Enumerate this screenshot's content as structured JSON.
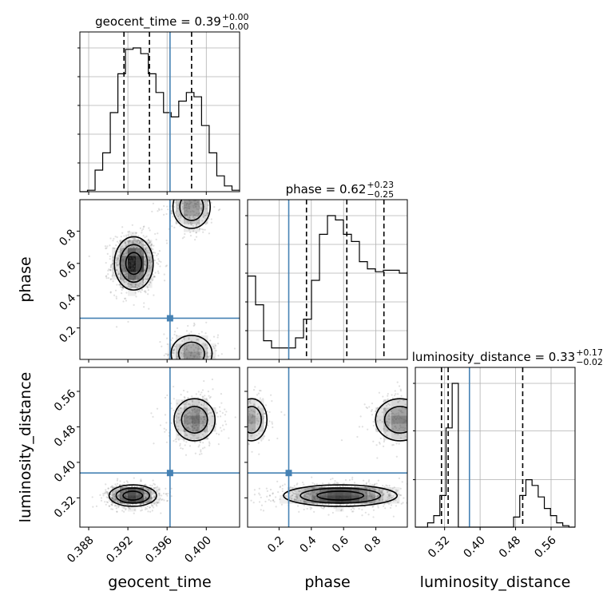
{
  "chart_data": {
    "type": "corner",
    "parameters": [
      "geocent_time",
      "phase",
      "luminosity_distance"
    ],
    "truths": {
      "geocent_time": 0.3963,
      "phase": 0.26,
      "luminosity_distance": 0.376
    },
    "titles": [
      {
        "param": "geocent_time",
        "text": "geocent_time = 0.39",
        "sup": "+0.00",
        "sub": "−0.00"
      },
      {
        "param": "phase",
        "text": "phase = 0.62",
        "sup": "+0.23",
        "sub": "−0.25"
      },
      {
        "param": "luminosity_distance",
        "text": "luminosity_distance = 0.33",
        "sup": "+0.17",
        "sub": "−0.02"
      }
    ],
    "ranges": {
      "geocent_time": [
        0.3871,
        0.4034
      ],
      "phase": [
        0.005,
        0.995
      ],
      "luminosity_distance": [
        0.254,
        0.614
      ]
    },
    "ticks": {
      "geocent_time": [
        "0.388",
        "0.392",
        "0.396",
        "0.400"
      ],
      "phase": [
        "0.2",
        "0.4",
        "0.6",
        "0.8"
      ],
      "luminosity_distance": [
        "0.32",
        "0.40",
        "0.48",
        "0.56"
      ]
    },
    "quantiles": {
      "geocent_time": [
        0.3916,
        0.3942,
        0.3985
      ],
      "phase": [
        0.37,
        0.62,
        0.85
      ],
      "luminosity_distance": [
        0.313,
        0.328,
        0.496
      ]
    },
    "histograms": {
      "geocent_time": {
        "edges": [
          0.3871,
          0.4034
        ],
        "counts": [
          0.0,
          0.01,
          0.15,
          0.27,
          0.55,
          0.82,
          0.99,
          1.0,
          0.96,
          0.82,
          0.69,
          0.55,
          0.52,
          0.63,
          0.69,
          0.66,
          0.46,
          0.27,
          0.11,
          0.04,
          0.01
        ]
      },
      "phase": {
        "edges": [
          0.005,
          0.995
        ],
        "counts": [
          0.58,
          0.38,
          0.13,
          0.08,
          0.08,
          0.08,
          0.15,
          0.28,
          0.55,
          0.87,
          1.0,
          0.97,
          0.87,
          0.82,
          0.68,
          0.63,
          0.61,
          0.62,
          0.62,
          0.6
        ]
      },
      "luminosity_distance": {
        "edges": [
          0.254,
          0.614
        ],
        "counts": [
          0.0,
          0.0,
          0.03,
          0.08,
          0.22,
          0.69,
          1.0,
          0.0,
          0.0,
          0.0,
          0.0,
          0.0,
          0.0,
          0.0,
          0.0,
          0.0,
          0.07,
          0.22,
          0.33,
          0.29,
          0.21,
          0.13,
          0.08,
          0.03,
          0.01,
          0.0
        ]
      }
    },
    "histogram_yticks": {
      "geocent_time": [
        0.2,
        0.4,
        0.6,
        0.8,
        1.0
      ],
      "phase": [
        0.2,
        0.4,
        0.6,
        0.8,
        1.0
      ],
      "luminosity_distance": [
        0.33,
        0.67,
        1.0
      ]
    },
    "modes": [
      {
        "pair": [
          "geocent_time",
          "phase"
        ],
        "center": [
          0.3926,
          0.6
        ],
        "sd": [
          0.0009,
          0.075
        ],
        "weight": 1.0,
        "n": 900
      },
      {
        "pair": [
          "geocent_time",
          "phase"
        ],
        "center": [
          0.3985,
          0.95
        ],
        "sd": [
          0.001,
          0.07
        ],
        "weight": 0.45,
        "n": 300
      },
      {
        "pair": [
          "geocent_time",
          "phase"
        ],
        "center": [
          0.3985,
          0.04
        ],
        "sd": [
          0.0011,
          0.06
        ],
        "weight": 0.45,
        "n": 250
      },
      {
        "pair": [
          "geocent_time",
          "luminosity_distance"
        ],
        "center": [
          0.3925,
          0.325
        ],
        "sd": [
          0.0011,
          0.011
        ],
        "weight": 1.0,
        "n": 800
      },
      {
        "pair": [
          "geocent_time",
          "luminosity_distance"
        ],
        "center": [
          0.3988,
          0.496
        ],
        "sd": [
          0.0011,
          0.025
        ],
        "weight": 0.55,
        "n": 400
      },
      {
        "pair": [
          "phase",
          "luminosity_distance"
        ],
        "center": [
          0.58,
          0.325
        ],
        "sd": [
          0.16,
          0.011
        ],
        "weight": 1.0,
        "n": 900
      },
      {
        "pair": [
          "phase",
          "luminosity_distance"
        ],
        "center": [
          0.95,
          0.496
        ],
        "sd": [
          0.08,
          0.025
        ],
        "weight": 0.5,
        "n": 250
      },
      {
        "pair": [
          "phase",
          "luminosity_distance"
        ],
        "center": [
          0.03,
          0.496
        ],
        "sd": [
          0.05,
          0.025
        ],
        "weight": 0.4,
        "n": 150
      }
    ]
  }
}
